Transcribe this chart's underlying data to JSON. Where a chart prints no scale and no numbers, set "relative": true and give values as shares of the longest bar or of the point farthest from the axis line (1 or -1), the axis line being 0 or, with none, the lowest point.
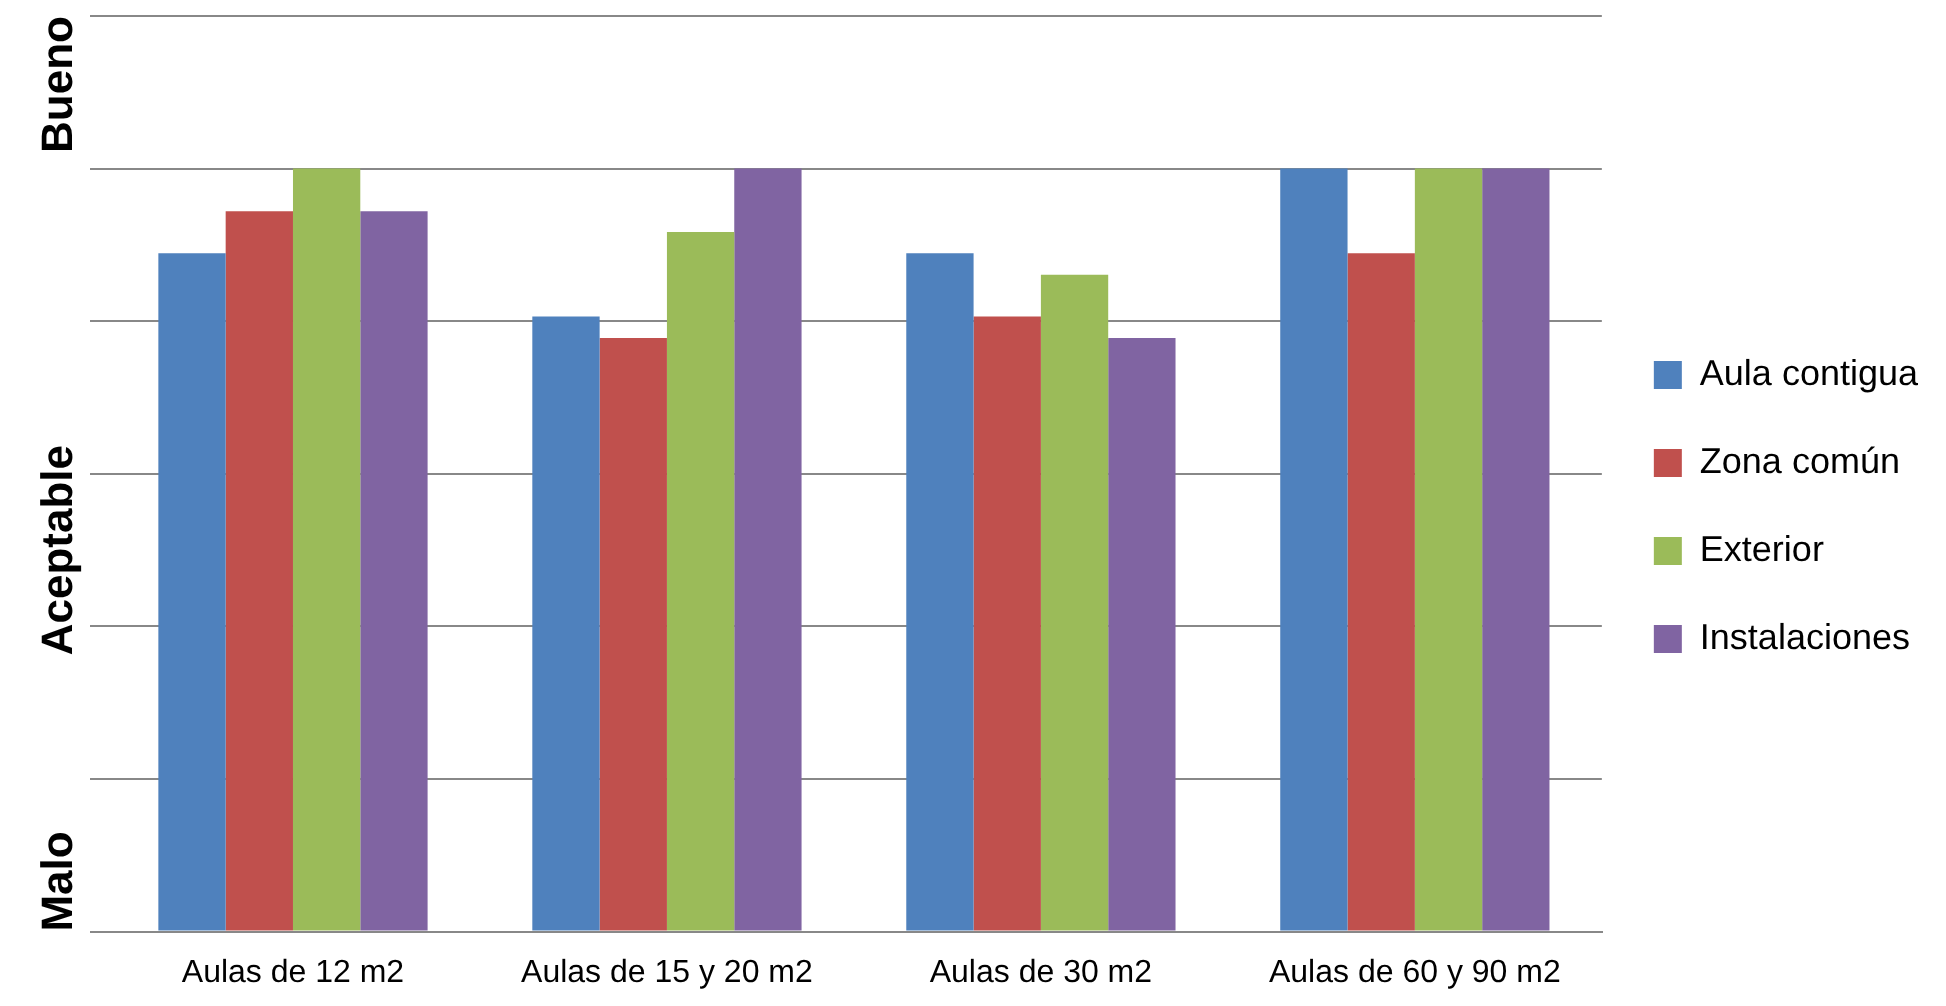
{
  "chart_data": {
    "type": "bar",
    "relative": true,
    "grid": "y",
    "legend": "right",
    "categories": [
      "Aulas de 12 m2",
      "Aulas de 15 y 20 m2",
      "Aulas de 30 m2",
      "Aulas de 60 y 90 m2"
    ],
    "series": [
      {
        "name": "Aula contigua",
        "color": "#4f81bd",
        "values": [
          0.889,
          0.806,
          0.889,
          1
        ]
      },
      {
        "name": "Zona común",
        "color": "#c0504d",
        "values": [
          0.944,
          0.778,
          0.806,
          0.889
        ]
      },
      {
        "name": "Exterior",
        "color": "#9bbb59",
        "values": [
          1,
          0.917,
          0.861,
          1
        ]
      },
      {
        "name": "Instalaciones",
        "color": "#8064a2",
        "values": [
          0.944,
          1,
          0.778,
          1
        ]
      }
    ],
    "annotations": [
      "Malo",
      "Aceptable",
      "Bueno"
    ]
  }
}
